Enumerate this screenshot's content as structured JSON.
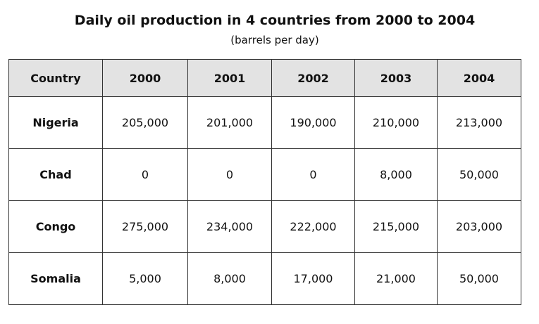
{
  "header": {
    "title": "Daily oil production in 4 countries from 2000 to 2004",
    "subtitle": "(barrels per day)"
  },
  "table": {
    "columns": [
      "Country",
      "2000",
      "2001",
      "2002",
      "2003",
      "2004"
    ],
    "rows": [
      [
        "Nigeria",
        "205,000",
        "201,000",
        "190,000",
        "210,000",
        "213,000"
      ],
      [
        "Chad",
        "0",
        "0",
        "0",
        "8,000",
        "50,000"
      ],
      [
        "Congo",
        "275,000",
        "234,000",
        "222,000",
        "215,000",
        "203,000"
      ],
      [
        "Somalia",
        "5,000",
        "8,000",
        "17,000",
        "21,000",
        "50,000"
      ]
    ]
  }
}
